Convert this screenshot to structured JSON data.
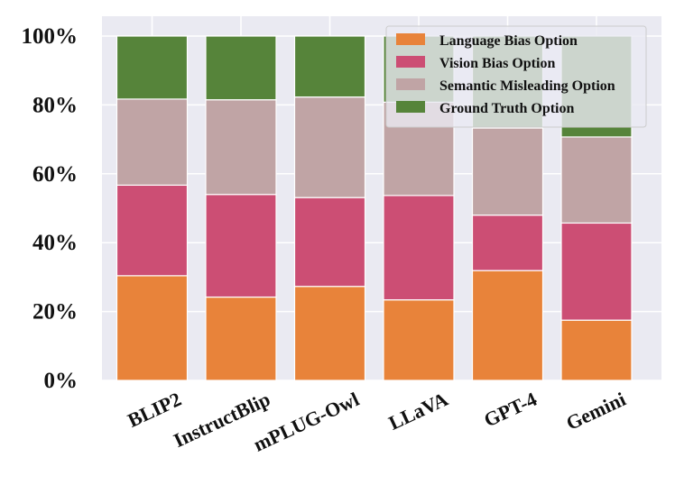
{
  "chart_data": {
    "type": "bar",
    "stacked": true,
    "title": "",
    "xlabel": "",
    "ylabel": "",
    "ylim": [
      0,
      100
    ],
    "y_unit": "%",
    "categories": [
      "BLIP2",
      "InstructBlip",
      "mPLUG-Owl",
      "LLaVA",
      "GPT-4",
      "Gemini"
    ],
    "yticks": [
      "0%",
      "20%",
      "40%",
      "60%",
      "80%",
      "100%"
    ],
    "series": [
      {
        "name": "Language Bias Option",
        "color": "#E8833A",
        "values": [
          30.4,
          24.2,
          27.3,
          23.4,
          31.9,
          17.5
        ]
      },
      {
        "name": "Vision Bias Option",
        "color": "#CC4E74",
        "values": [
          26.3,
          29.8,
          25.8,
          30.3,
          16.1,
          28.2
        ]
      },
      {
        "name": "Semantic Misleading Option",
        "color": "#C0A4A5",
        "values": [
          25.0,
          27.5,
          29.2,
          27.1,
          25.3,
          25.0
        ]
      },
      {
        "name": "Ground Truth Option",
        "color": "#56843A",
        "values": [
          18.3,
          18.5,
          17.7,
          19.2,
          26.7,
          29.3
        ]
      }
    ],
    "grid": true,
    "background": "#EAEAF2",
    "legend_position": "top-right",
    "x_tick_rotation": "diagonal"
  }
}
